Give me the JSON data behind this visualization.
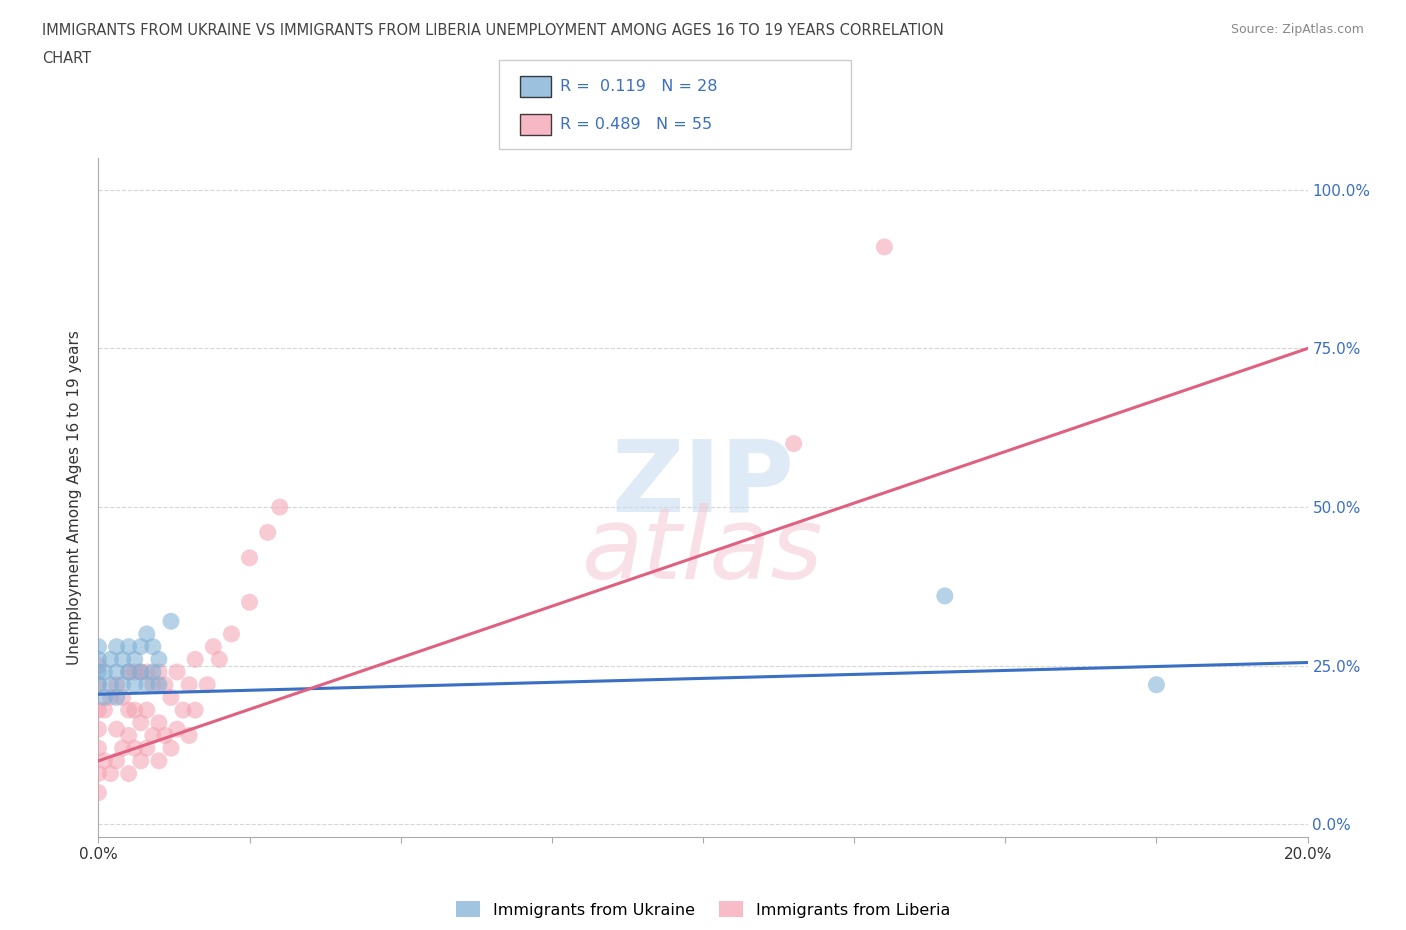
{
  "title_line1": "IMMIGRANTS FROM UKRAINE VS IMMIGRANTS FROM LIBERIA UNEMPLOYMENT AMONG AGES 16 TO 19 YEARS CORRELATION",
  "title_line2": "CHART",
  "source": "Source: ZipAtlas.com",
  "ylabel": "Unemployment Among Ages 16 to 19 years",
  "xlim": [
    0.0,
    0.2
  ],
  "ylim": [
    -0.02,
    1.05
  ],
  "yticks": [
    0.0,
    0.25,
    0.5,
    0.75,
    1.0
  ],
  "ytick_labels": [
    "0.0%",
    "25.0%",
    "50.0%",
    "75.0%",
    "100.0%"
  ],
  "xticks": [
    0.0,
    0.025,
    0.05,
    0.075,
    0.1,
    0.125,
    0.15,
    0.175,
    0.2
  ],
  "xtick_labels": [
    "0.0%",
    "",
    "",
    "",
    "",
    "",
    "",
    "",
    "20.0%"
  ],
  "ukraine_color": "#7aadd4",
  "liberia_color": "#f4a0b0",
  "ukraine_line_color": "#3a6fc4",
  "liberia_line_color": "#e06080",
  "R_ukraine": 0.119,
  "N_ukraine": 28,
  "R_liberia": 0.489,
  "N_liberia": 55,
  "ukraine_scatter_x": [
    0.0,
    0.0,
    0.0,
    0.0,
    0.001,
    0.001,
    0.002,
    0.002,
    0.003,
    0.003,
    0.003,
    0.004,
    0.004,
    0.005,
    0.005,
    0.006,
    0.006,
    0.007,
    0.007,
    0.008,
    0.008,
    0.009,
    0.009,
    0.01,
    0.01,
    0.012,
    0.14,
    0.175
  ],
  "ukraine_scatter_y": [
    0.22,
    0.24,
    0.26,
    0.28,
    0.2,
    0.24,
    0.22,
    0.26,
    0.2,
    0.24,
    0.28,
    0.22,
    0.26,
    0.24,
    0.28,
    0.22,
    0.26,
    0.24,
    0.28,
    0.22,
    0.3,
    0.24,
    0.28,
    0.22,
    0.26,
    0.32,
    0.36,
    0.22
  ],
  "liberia_scatter_x": [
    0.0,
    0.0,
    0.0,
    0.0,
    0.0,
    0.0,
    0.0,
    0.001,
    0.001,
    0.002,
    0.002,
    0.003,
    0.003,
    0.003,
    0.004,
    0.004,
    0.005,
    0.005,
    0.005,
    0.005,
    0.006,
    0.006,
    0.006,
    0.007,
    0.007,
    0.007,
    0.008,
    0.008,
    0.008,
    0.009,
    0.009,
    0.01,
    0.01,
    0.01,
    0.011,
    0.011,
    0.012,
    0.012,
    0.013,
    0.013,
    0.014,
    0.015,
    0.015,
    0.016,
    0.016,
    0.018,
    0.019,
    0.02,
    0.022,
    0.025,
    0.025,
    0.028,
    0.03,
    0.13,
    0.115
  ],
  "liberia_scatter_y": [
    0.05,
    0.08,
    0.12,
    0.15,
    0.18,
    0.22,
    0.25,
    0.1,
    0.18,
    0.08,
    0.2,
    0.1,
    0.15,
    0.22,
    0.12,
    0.2,
    0.08,
    0.14,
    0.18,
    0.24,
    0.12,
    0.18,
    0.24,
    0.1,
    0.16,
    0.24,
    0.12,
    0.18,
    0.24,
    0.14,
    0.22,
    0.1,
    0.16,
    0.24,
    0.14,
    0.22,
    0.12,
    0.2,
    0.15,
    0.24,
    0.18,
    0.14,
    0.22,
    0.18,
    0.26,
    0.22,
    0.28,
    0.26,
    0.3,
    0.35,
    0.42,
    0.46,
    0.5,
    0.91,
    0.6
  ],
  "ukraine_trend_x": [
    0.0,
    0.2
  ],
  "ukraine_trend_y": [
    0.205,
    0.255
  ],
  "liberia_trend_x": [
    0.0,
    0.2
  ],
  "liberia_trend_y": [
    0.1,
    0.75
  ]
}
